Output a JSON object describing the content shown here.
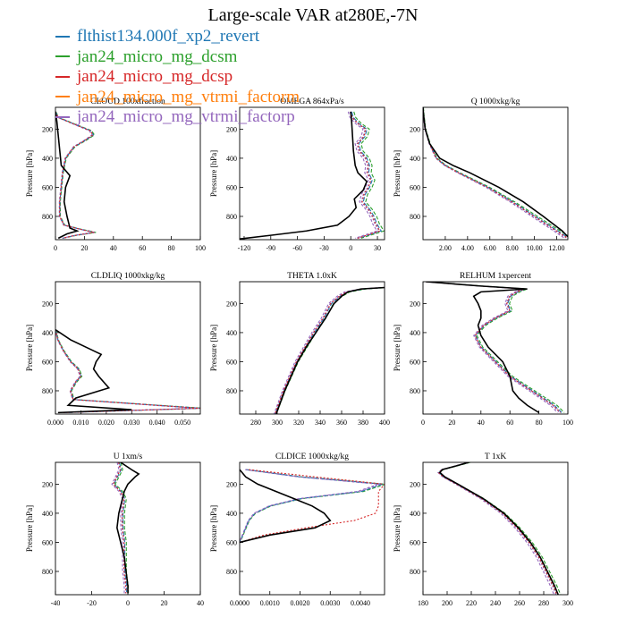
{
  "figure": {
    "title": "Large-scale VAR at280E,-7N",
    "y_axis_label": "Pressure [hPa]",
    "legend": [
      {
        "name": "flthist134.000f_xp2_revert",
        "color": "#1f77b4"
      },
      {
        "name": "jan24_micro_mg_dcsm",
        "color": "#2ca02c"
      },
      {
        "name": "jan24_micro_mg_dcsp",
        "color": "#d62728"
      },
      {
        "name": "jan24_micro_mg_vtrmi_factorm",
        "color": "#ff7f0e"
      },
      {
        "name": "jan24_micro_mg_vtrmi_factorp",
        "color": "#9467bd"
      }
    ],
    "control_series_color": "#000000"
  },
  "chart_data": [
    {
      "type": "line",
      "title": "CLOUD 100xfraction",
      "xlim": [
        0,
        100
      ],
      "xticks": [
        0,
        20,
        40,
        60,
        80,
        100
      ],
      "xticklabels": [
        "0",
        "20",
        "40",
        "60",
        "80",
        "100"
      ],
      "ylim": [
        50,
        960
      ],
      "yticks": [
        200,
        400,
        600,
        800
      ],
      "ylabel": "Pressure [hPa]",
      "series": [
        {
          "key": "models",
          "pressure": [
            80,
            120,
            170,
            210,
            240,
            280,
            320,
            400,
            500,
            600,
            700,
            800,
            860,
            890,
            910,
            930,
            950
          ],
          "x": [
            0,
            2,
            14,
            24,
            26,
            20,
            13,
            7,
            5,
            4,
            3,
            3,
            6,
            18,
            27,
            14,
            5
          ]
        },
        {
          "key": "control",
          "pressure": [
            80,
            150,
            250,
            350,
            450,
            520,
            600,
            700,
            800,
            880,
            900,
            920,
            950
          ],
          "x": [
            0,
            1,
            2,
            3,
            4,
            10,
            7,
            6,
            8,
            10,
            15,
            8,
            2
          ]
        }
      ]
    },
    {
      "type": "line",
      "title": "OMEGA 864xPa/s",
      "xlim": [
        -125,
        38
      ],
      "xticks": [
        -120,
        -90,
        -60,
        -30,
        0,
        30
      ],
      "xticklabels": [
        "-120",
        "-90",
        "-60",
        "-30",
        "0",
        "30"
      ],
      "ylim": [
        50,
        960
      ],
      "yticks": [
        200,
        400,
        600,
        800
      ],
      "ylabel": "Pressure [hPa]",
      "series": [
        {
          "key": "models",
          "pressure": [
            80,
            120,
            160,
            200,
            250,
            300,
            350,
            400,
            450,
            500,
            550,
            600,
            650,
            700,
            750,
            800,
            850,
            900,
            950
          ],
          "x": [
            0,
            2,
            8,
            17,
            15,
            8,
            10,
            17,
            20,
            19,
            23,
            20,
            15,
            13,
            20,
            25,
            28,
            33,
            8
          ]
        },
        {
          "key": "control",
          "pressure": [
            80,
            150,
            250,
            350,
            450,
            500,
            560,
            620,
            680,
            740,
            800,
            860,
            900,
            930,
            955
          ],
          "x": [
            0,
            1,
            2,
            3,
            5,
            8,
            18,
            14,
            4,
            6,
            -2,
            -15,
            -50,
            -90,
            -125
          ]
        }
      ]
    },
    {
      "type": "line",
      "title": "Q 1000xkg/kg",
      "xlim": [
        0,
        13
      ],
      "xticks": [
        2,
        4,
        6,
        8,
        10,
        12
      ],
      "xticklabels": [
        "2.00",
        "4.00",
        "6.00",
        "8.00",
        "10.00",
        "12.00"
      ],
      "ylim": [
        50,
        960
      ],
      "yticks": [
        200,
        400,
        600,
        800
      ],
      "ylabel": "Pressure [hPa]",
      "series": [
        {
          "key": "models",
          "pressure": [
            50,
            100,
            200,
            300,
            400,
            450,
            500,
            600,
            700,
            800,
            900,
            950
          ],
          "x": [
            0.0,
            0.05,
            0.2,
            0.6,
            1.2,
            2.0,
            3.2,
            5.8,
            8.0,
            10.0,
            12.0,
            13.0
          ]
        },
        {
          "key": "control",
          "pressure": [
            50,
            100,
            200,
            300,
            400,
            450,
            500,
            600,
            700,
            800,
            900,
            940
          ],
          "x": [
            0.0,
            0.05,
            0.2,
            0.6,
            1.5,
            2.7,
            4.2,
            6.8,
            9.0,
            10.8,
            12.5,
            13.0
          ]
        }
      ]
    },
    {
      "type": "line",
      "title": "CLDLIQ 1000xkg/kg",
      "xlim": [
        0,
        0.057
      ],
      "xticks": [
        0,
        0.01,
        0.02,
        0.03,
        0.04,
        0.05
      ],
      "xticklabels": [
        "0.000",
        "0.010",
        "0.020",
        "0.030",
        "0.040",
        "0.050"
      ],
      "ylim": [
        50,
        960
      ],
      "yticks": [
        200,
        400,
        600,
        800
      ],
      "ylabel": "Pressure [hPa]",
      "series": [
        {
          "key": "models",
          "pressure": [
            380,
            450,
            520,
            600,
            650,
            700,
            740,
            800,
            860,
            900,
            920,
            935,
            950
          ],
          "x": [
            0.0,
            0.001,
            0.003,
            0.006,
            0.009,
            0.01,
            0.008,
            0.006,
            0.007,
            0.04,
            0.057,
            0.03,
            0.003
          ]
        },
        {
          "key": "control",
          "pressure": [
            380,
            450,
            500,
            550,
            600,
            650,
            700,
            780,
            850,
            900,
            930,
            950
          ],
          "x": [
            0.0,
            0.006,
            0.012,
            0.018,
            0.016,
            0.015,
            0.017,
            0.021,
            0.008,
            0.005,
            0.03,
            0.001
          ]
        }
      ]
    },
    {
      "type": "line",
      "title": "THETA 1.0xK",
      "xlim": [
        265,
        400
      ],
      "xticks": [
        280,
        300,
        320,
        340,
        360,
        380,
        400
      ],
      "xticklabels": [
        "280",
        "300",
        "320",
        "340",
        "360",
        "380",
        "400"
      ],
      "ylim": [
        50,
        960
      ],
      "yticks": [
        200,
        400,
        600,
        800
      ],
      "ylabel": "Pressure [hPa]",
      "series": [
        {
          "key": "models",
          "pressure": [
            90,
            100,
            120,
            150,
            200,
            300,
            400,
            500,
            600,
            700,
            800,
            900,
            960
          ],
          "x": [
            400,
            380,
            365,
            358,
            350,
            343,
            334,
            326,
            318,
            312,
            306,
            301,
            298
          ]
        },
        {
          "key": "control",
          "pressure": [
            90,
            100,
            120,
            150,
            200,
            300,
            400,
            500,
            600,
            700,
            800,
            900,
            960
          ],
          "x": [
            400,
            378,
            366,
            360,
            353,
            345,
            336,
            327,
            319,
            313,
            307,
            302,
            299
          ]
        }
      ]
    },
    {
      "type": "line",
      "title": "RELHUM 1xpercent",
      "xlim": [
        0,
        100
      ],
      "xticks": [
        0,
        20,
        40,
        60,
        80,
        100
      ],
      "xticklabels": [
        "0",
        "20",
        "40",
        "60",
        "80",
        "100"
      ],
      "ylim": [
        50,
        960
      ],
      "yticks": [
        200,
        400,
        600,
        800
      ],
      "ylabel": "Pressure [hPa]",
      "series": [
        {
          "key": "models",
          "pressure": [
            50,
            80,
            100,
            120,
            150,
            200,
            250,
            300,
            350,
            420,
            500,
            600,
            700,
            800,
            900,
            950
          ],
          "x": [
            2,
            40,
            70,
            65,
            60,
            58,
            60,
            50,
            42,
            36,
            40,
            50,
            60,
            75,
            90,
            95
          ]
        },
        {
          "key": "control",
          "pressure": [
            50,
            80,
            100,
            120,
            150,
            200,
            250,
            300,
            350,
            420,
            500,
            600,
            700,
            800,
            850,
            900,
            950
          ],
          "x": [
            2,
            40,
            72,
            40,
            35,
            38,
            40,
            40,
            38,
            40,
            45,
            55,
            60,
            62,
            66,
            72,
            80
          ]
        }
      ]
    },
    {
      "type": "line",
      "title": "U 1xm/s",
      "xlim": [
        -40,
        40
      ],
      "xticks": [
        -40,
        -20,
        0,
        20,
        40
      ],
      "xticklabels": [
        "-40",
        "-20",
        "0",
        "20",
        "40"
      ],
      "ylim": [
        50,
        960
      ],
      "yticks": [
        200,
        400,
        600,
        800
      ],
      "ylabel": "Pressure [hPa]",
      "series": [
        {
          "key": "models",
          "pressure": [
            50,
            100,
            150,
            200,
            250,
            300,
            400,
            500,
            600,
            700,
            800,
            900,
            950
          ],
          "x": [
            -5,
            -4,
            -6,
            -8,
            -4,
            -2,
            -3,
            -3,
            -2,
            -2,
            -2,
            -1,
            -1
          ]
        },
        {
          "key": "control",
          "pressure": [
            50,
            100,
            130,
            150,
            200,
            250,
            300,
            400,
            500,
            600,
            700,
            800,
            900,
            950
          ],
          "x": [
            -4,
            2,
            6,
            4,
            0,
            -2,
            -3,
            -5,
            -6,
            -4,
            -2,
            -1,
            0,
            0
          ]
        }
      ]
    },
    {
      "type": "line",
      "title": "CLDICE 1000xkg/kg",
      "xlim": [
        0,
        0.0048
      ],
      "xticks": [
        0,
        0.001,
        0.002,
        0.003,
        0.004
      ],
      "xticklabels": [
        "0.0000",
        "0.0010",
        "0.0020",
        "0.0030",
        "0.0040"
      ],
      "ylim": [
        50,
        960
      ],
      "yticks": [
        200,
        400,
        600,
        800
      ],
      "ylabel": "Pressure [hPa]",
      "series": [
        {
          "key": "models",
          "pressure": [
            100,
            150,
            200,
            250,
            300,
            350,
            400,
            450,
            500,
            550,
            600
          ],
          "x": [
            0.0002,
            0.002,
            0.0047,
            0.004,
            0.002,
            0.001,
            0.0005,
            0.0003,
            0.0002,
            0.0001,
            0.0
          ]
        },
        {
          "key": "control",
          "pressure": [
            100,
            150,
            200,
            250,
            300,
            350,
            400,
            450,
            500,
            550,
            600
          ],
          "x": [
            0.0,
            0.0002,
            0.0006,
            0.0012,
            0.0018,
            0.0024,
            0.0028,
            0.003,
            0.0025,
            0.001,
            0.0
          ]
        },
        {
          "key": "dcsp",
          "pressure": [
            100,
            150,
            200,
            250,
            300,
            350,
            400,
            450,
            500,
            550,
            600
          ],
          "x": [
            0.0003,
            0.0025,
            0.0048,
            0.0046,
            0.0046,
            0.0046,
            0.0045,
            0.0038,
            0.0022,
            0.0008,
            0.0
          ]
        }
      ]
    },
    {
      "type": "line",
      "title": "T 1xK",
      "xlim": [
        180,
        300
      ],
      "xticks": [
        180,
        200,
        220,
        240,
        260,
        280,
        300
      ],
      "xticklabels": [
        "180",
        "200",
        "220",
        "240",
        "260",
        "280",
        "300"
      ],
      "ylim": [
        50,
        960
      ],
      "yticks": [
        200,
        400,
        600,
        800
      ],
      "ylabel": "Pressure [hPa]",
      "series": [
        {
          "key": "models",
          "pressure": [
            50,
            80,
            100,
            120,
            150,
            200,
            300,
            400,
            500,
            600,
            700,
            800,
            900,
            960
          ],
          "x": [
            218,
            205,
            196,
            193,
            197,
            208,
            229,
            246,
            258,
            268,
            276,
            282,
            288,
            291
          ]
        },
        {
          "key": "control",
          "pressure": [
            50,
            80,
            100,
            120,
            150,
            200,
            300,
            400,
            500,
            600,
            700,
            800,
            900,
            960
          ],
          "x": [
            218,
            205,
            196,
            194,
            198,
            209,
            230,
            247,
            259,
            269,
            277,
            283,
            289,
            292
          ]
        }
      ]
    }
  ]
}
